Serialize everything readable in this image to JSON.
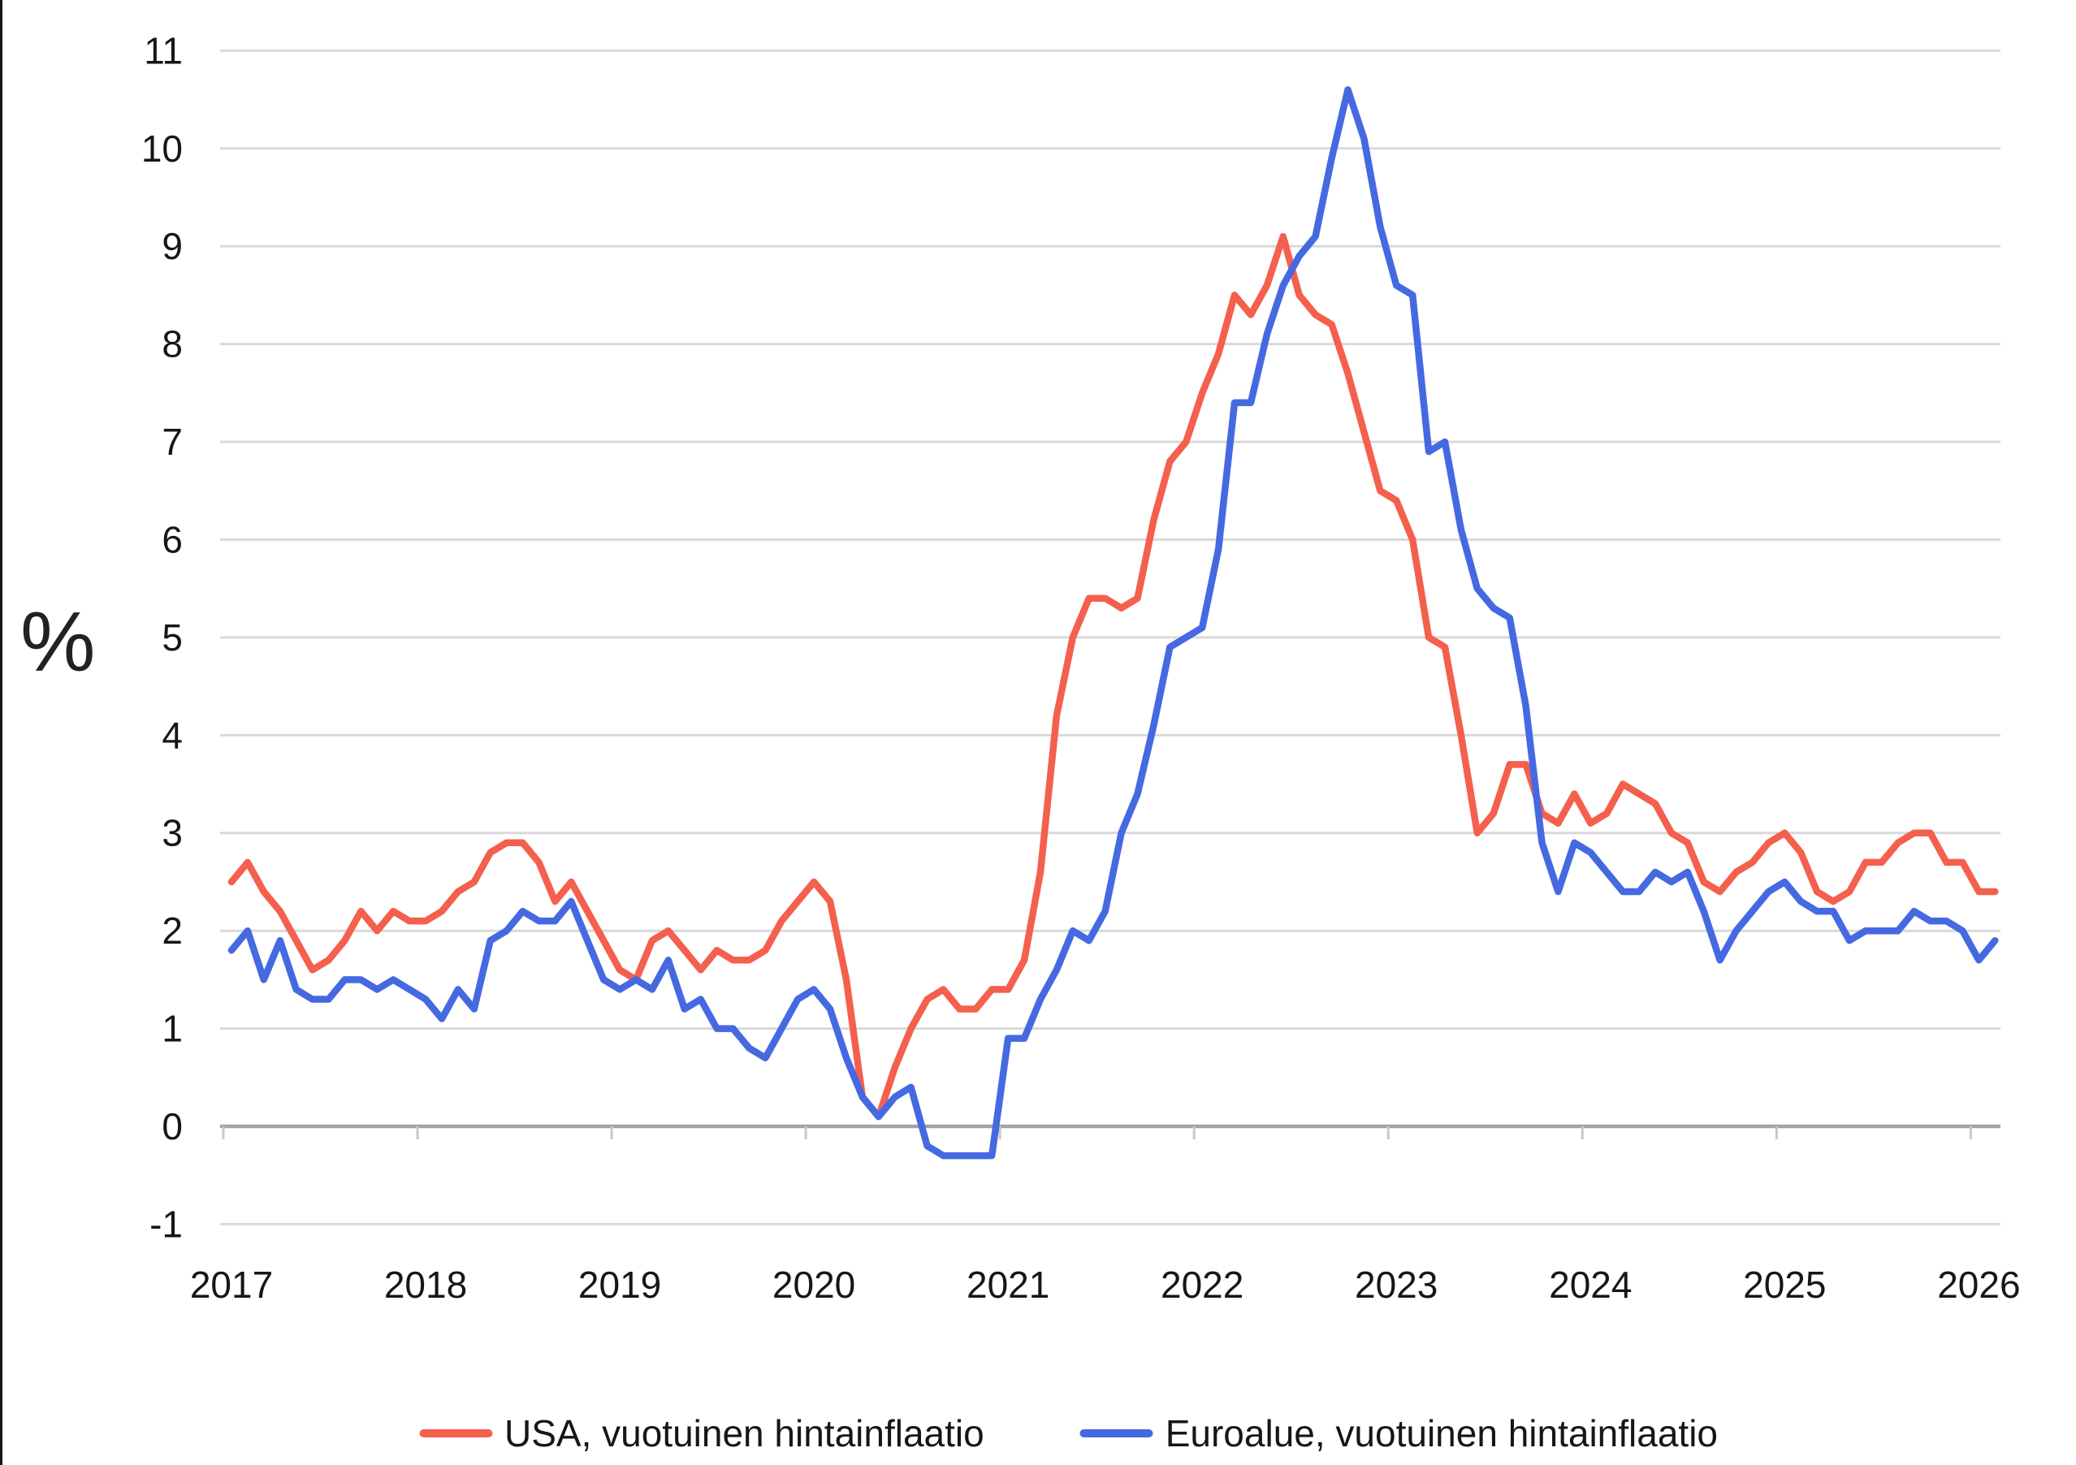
{
  "page": {
    "background": "#ffffff",
    "frame_left_border": "#161616"
  },
  "colors": {
    "usa_line": "#F4604D",
    "euro_line": "#4569E1",
    "gridline": "#D9D9D9",
    "zero_axis": "#A3A3A3",
    "tick": "#C8C8C8",
    "label_text": "#161616"
  },
  "chart_data": {
    "type": "line",
    "title": "",
    "ylabel": "%",
    "xlabel": "",
    "grid": "horizontal",
    "legend_position": "bottom",
    "ylim": [
      -1,
      11
    ],
    "y_ticks": [
      11,
      10,
      9,
      8,
      7,
      6,
      5,
      4,
      3,
      2,
      1,
      0,
      -1
    ],
    "x_year_labels": [
      "2017",
      "2018",
      "2019",
      "2020",
      "2021",
      "2022",
      "2023",
      "2024",
      "2025",
      "2026"
    ],
    "x_start": "2017-01",
    "x_end": "2026-02",
    "x_unit": "month",
    "series": [
      {
        "name": "USA, vuotuinen hintainflaatio",
        "color": "#F4604D",
        "values": [
          2.5,
          2.7,
          2.4,
          2.2,
          1.9,
          1.6,
          1.7,
          1.9,
          2.2,
          2.0,
          2.2,
          2.1,
          2.1,
          2.2,
          2.4,
          2.5,
          2.8,
          2.9,
          2.9,
          2.7,
          2.3,
          2.5,
          2.2,
          1.9,
          1.6,
          1.5,
          1.9,
          2.0,
          1.8,
          1.6,
          1.8,
          1.7,
          1.7,
          1.8,
          2.1,
          2.3,
          2.5,
          2.3,
          1.5,
          0.3,
          0.1,
          0.6,
          1.0,
          1.3,
          1.4,
          1.2,
          1.2,
          1.4,
          1.4,
          1.7,
          2.6,
          4.2,
          5.0,
          5.4,
          5.4,
          5.3,
          5.4,
          6.2,
          6.8,
          7.0,
          7.5,
          7.9,
          8.5,
          8.3,
          8.6,
          9.1,
          8.5,
          8.3,
          8.2,
          7.7,
          7.1,
          6.5,
          6.4,
          6.0,
          5.0,
          4.9,
          4.0,
          3.0,
          3.2,
          3.7,
          3.7,
          3.2,
          3.1,
          3.4,
          3.1,
          3.2,
          3.5,
          3.4,
          3.3,
          3.0,
          2.9,
          2.5,
          2.4,
          2.6,
          2.7,
          2.9,
          3.0,
          2.8,
          2.4,
          2.3,
          2.4,
          2.7,
          2.7,
          2.9,
          3.0,
          3.0,
          2.7,
          2.7,
          2.4,
          2.4
        ]
      },
      {
        "name": "Euroalue, vuotuinen hintainflaatio",
        "color": "#4569E1",
        "values": [
          1.8,
          2.0,
          1.5,
          1.9,
          1.4,
          1.3,
          1.3,
          1.5,
          1.5,
          1.4,
          1.5,
          1.4,
          1.3,
          1.1,
          1.4,
          1.2,
          1.9,
          2.0,
          2.2,
          2.1,
          2.1,
          2.3,
          1.9,
          1.5,
          1.4,
          1.5,
          1.4,
          1.7,
          1.2,
          1.3,
          1.0,
          1.0,
          0.8,
          0.7,
          1.0,
          1.3,
          1.4,
          1.2,
          0.7,
          0.3,
          0.1,
          0.3,
          0.4,
          -0.2,
          -0.3,
          -0.3,
          -0.3,
          -0.3,
          0.9,
          0.9,
          1.3,
          1.6,
          2.0,
          1.9,
          2.2,
          3.0,
          3.4,
          4.1,
          4.9,
          5.0,
          5.1,
          5.9,
          7.4,
          7.4,
          8.1,
          8.6,
          8.9,
          9.1,
          9.9,
          10.6,
          10.1,
          9.2,
          8.6,
          8.5,
          6.9,
          7.0,
          6.1,
          5.5,
          5.3,
          5.2,
          4.3,
          2.9,
          2.4,
          2.9,
          2.8,
          2.6,
          2.4,
          2.4,
          2.6,
          2.5,
          2.6,
          2.2,
          1.7,
          2.0,
          2.2,
          2.4,
          2.5,
          2.3,
          2.2,
          2.2,
          1.9,
          2.0,
          2.0,
          2.0,
          2.2,
          2.1,
          2.1,
          2.0,
          1.7,
          1.9
        ]
      }
    ]
  },
  "legend": {
    "items": [
      {
        "label": "USA, vuotuinen hintainflaatio",
        "color": "#F4604D"
      },
      {
        "label": "Euroalue, vuotuinen hintainflaatio",
        "color": "#4569E1"
      }
    ]
  }
}
